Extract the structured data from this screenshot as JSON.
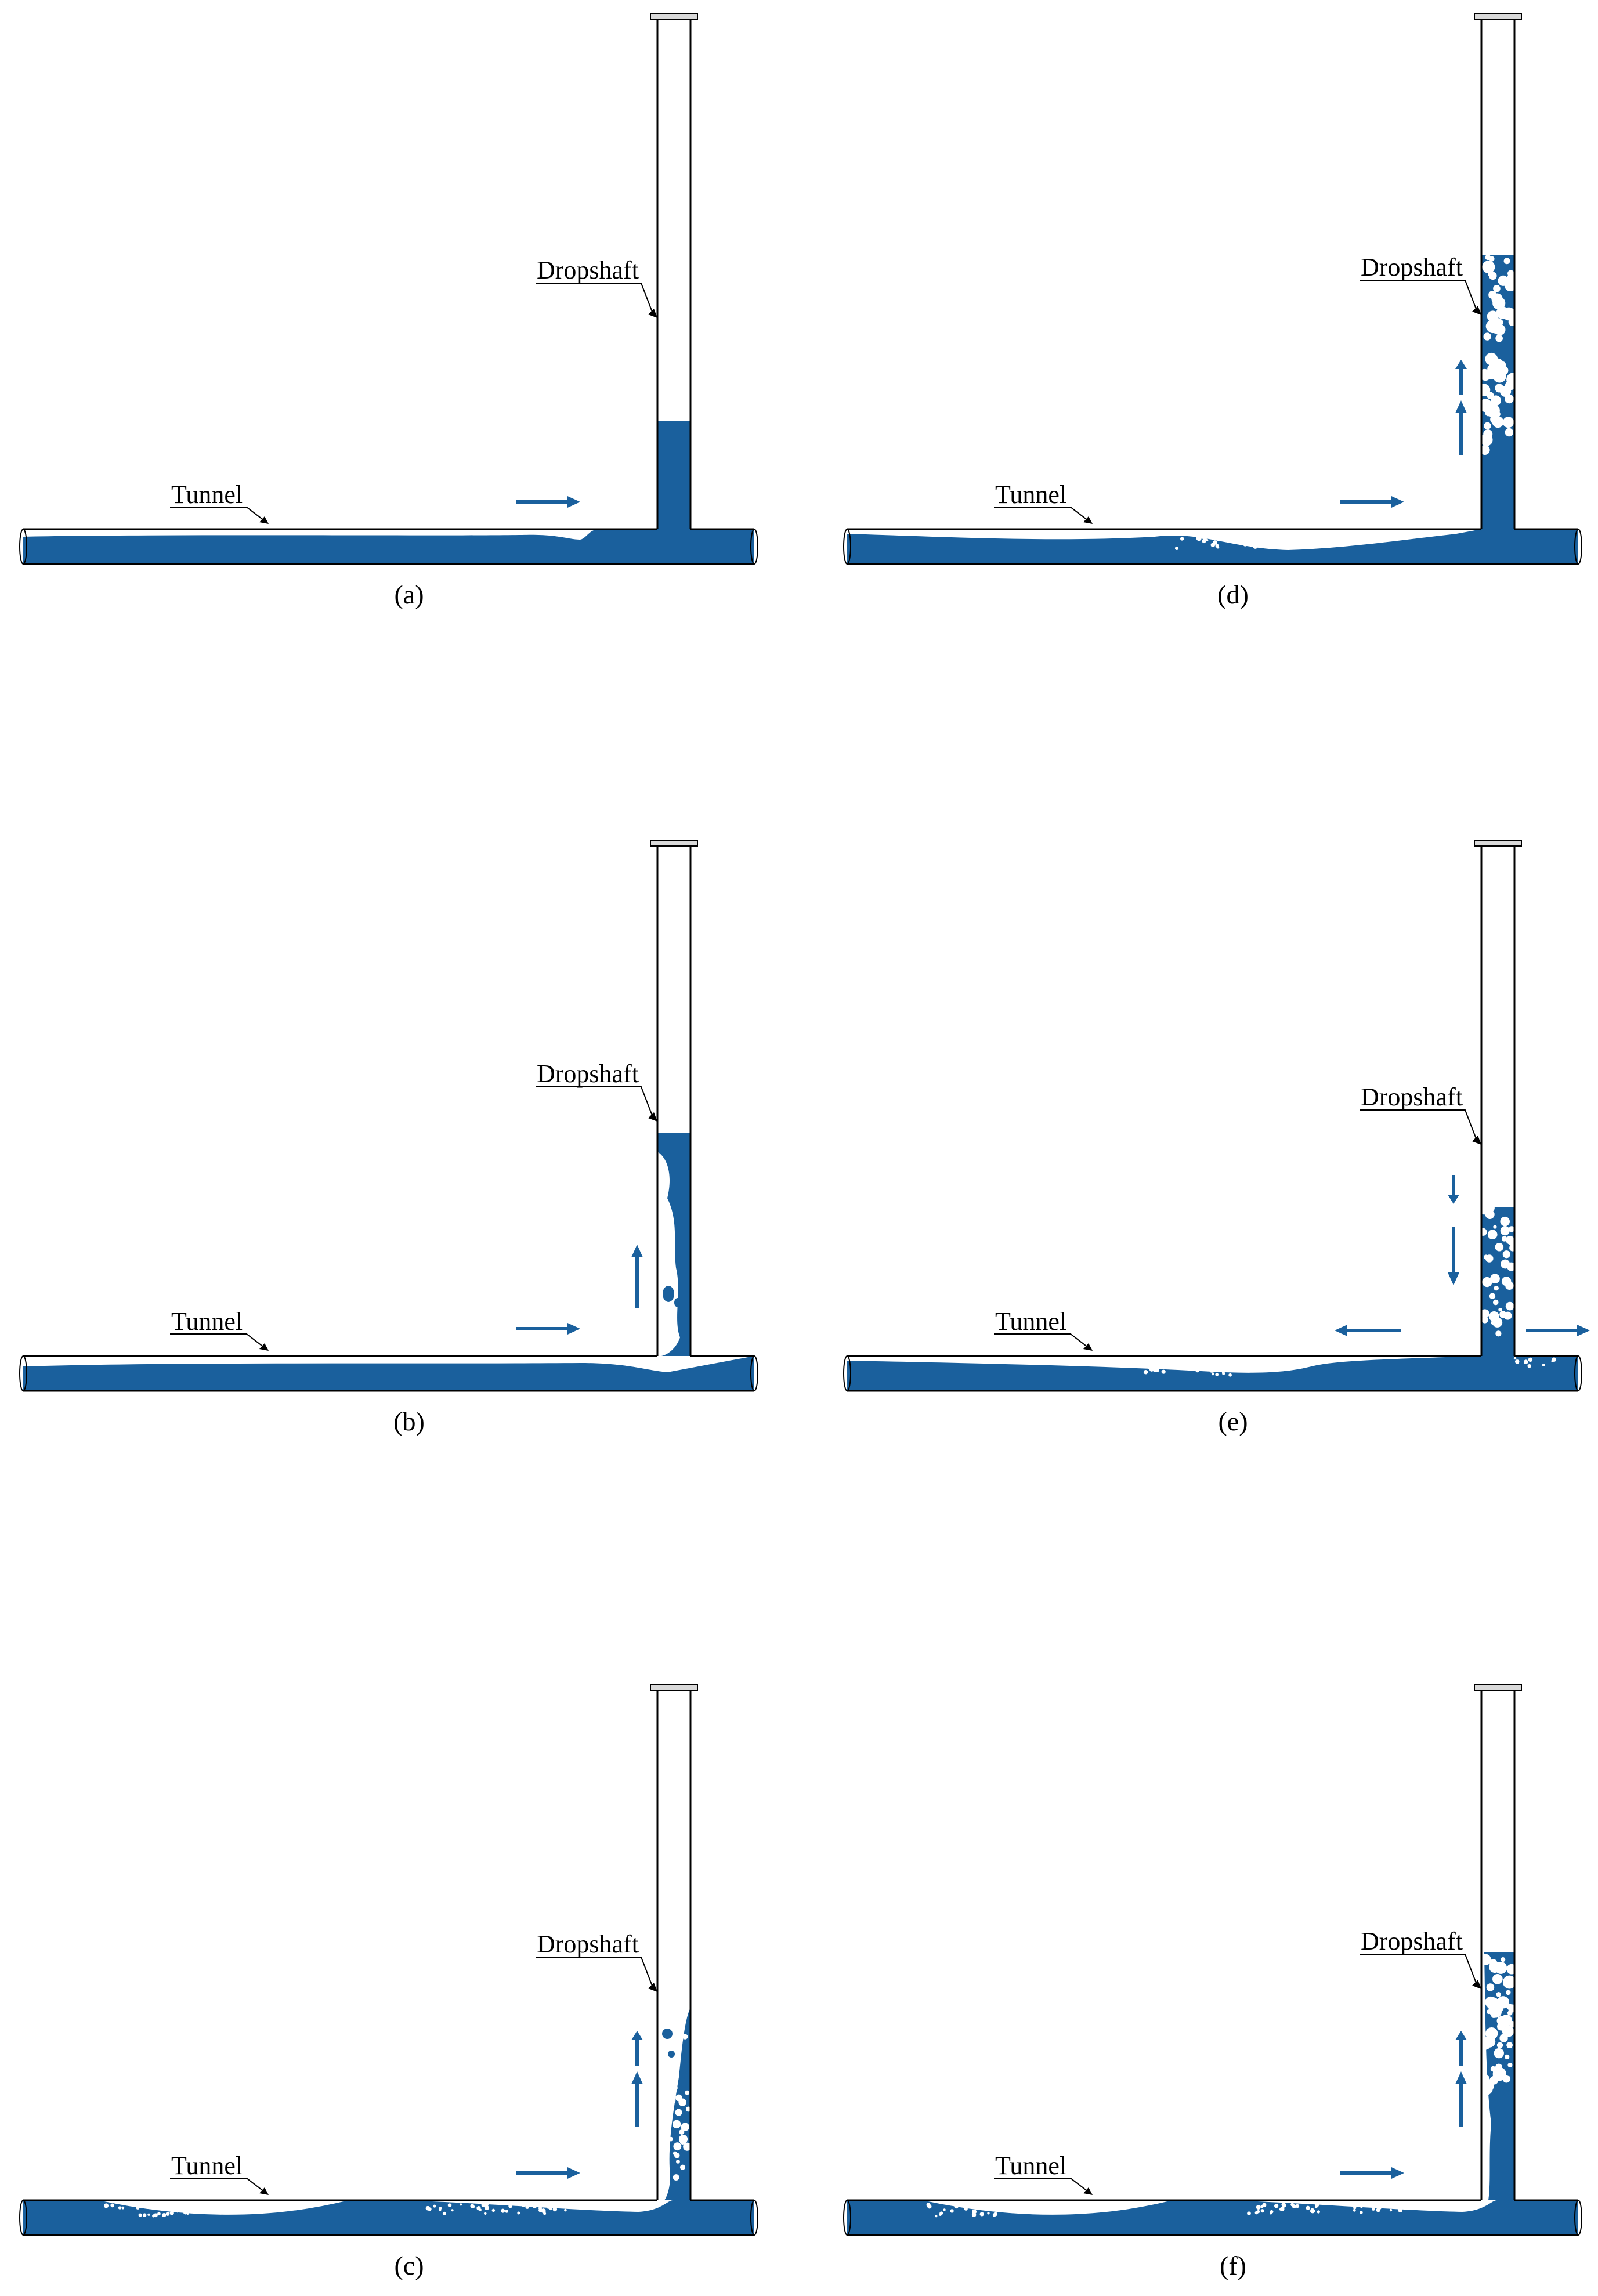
{
  "figure": {
    "colors": {
      "water": "#1a609d",
      "outline": "#000000",
      "background": "#ffffff",
      "cap": "#d9d9d9"
    },
    "panels": [
      {
        "id": "a",
        "caption": "(a)",
        "tunnel_label": "Tunnel",
        "dropshaft_label": "Dropshaft"
      },
      {
        "id": "b",
        "caption": "(b)",
        "tunnel_label": "Tunnel",
        "dropshaft_label": "Dropshaft"
      },
      {
        "id": "c",
        "caption": "(c)",
        "tunnel_label": "Tunnel",
        "dropshaft_label": "Dropshaft"
      },
      {
        "id": "d",
        "caption": "(d)",
        "tunnel_label": "Tunnel",
        "dropshaft_label": "Dropshaft"
      },
      {
        "id": "e",
        "caption": "(e)",
        "tunnel_label": "Tunnel",
        "dropshaft_label": "Dropshaft"
      },
      {
        "id": "f",
        "caption": "(f)",
        "tunnel_label": "Tunnel",
        "dropshaft_label": "Dropshaft"
      }
    ]
  }
}
